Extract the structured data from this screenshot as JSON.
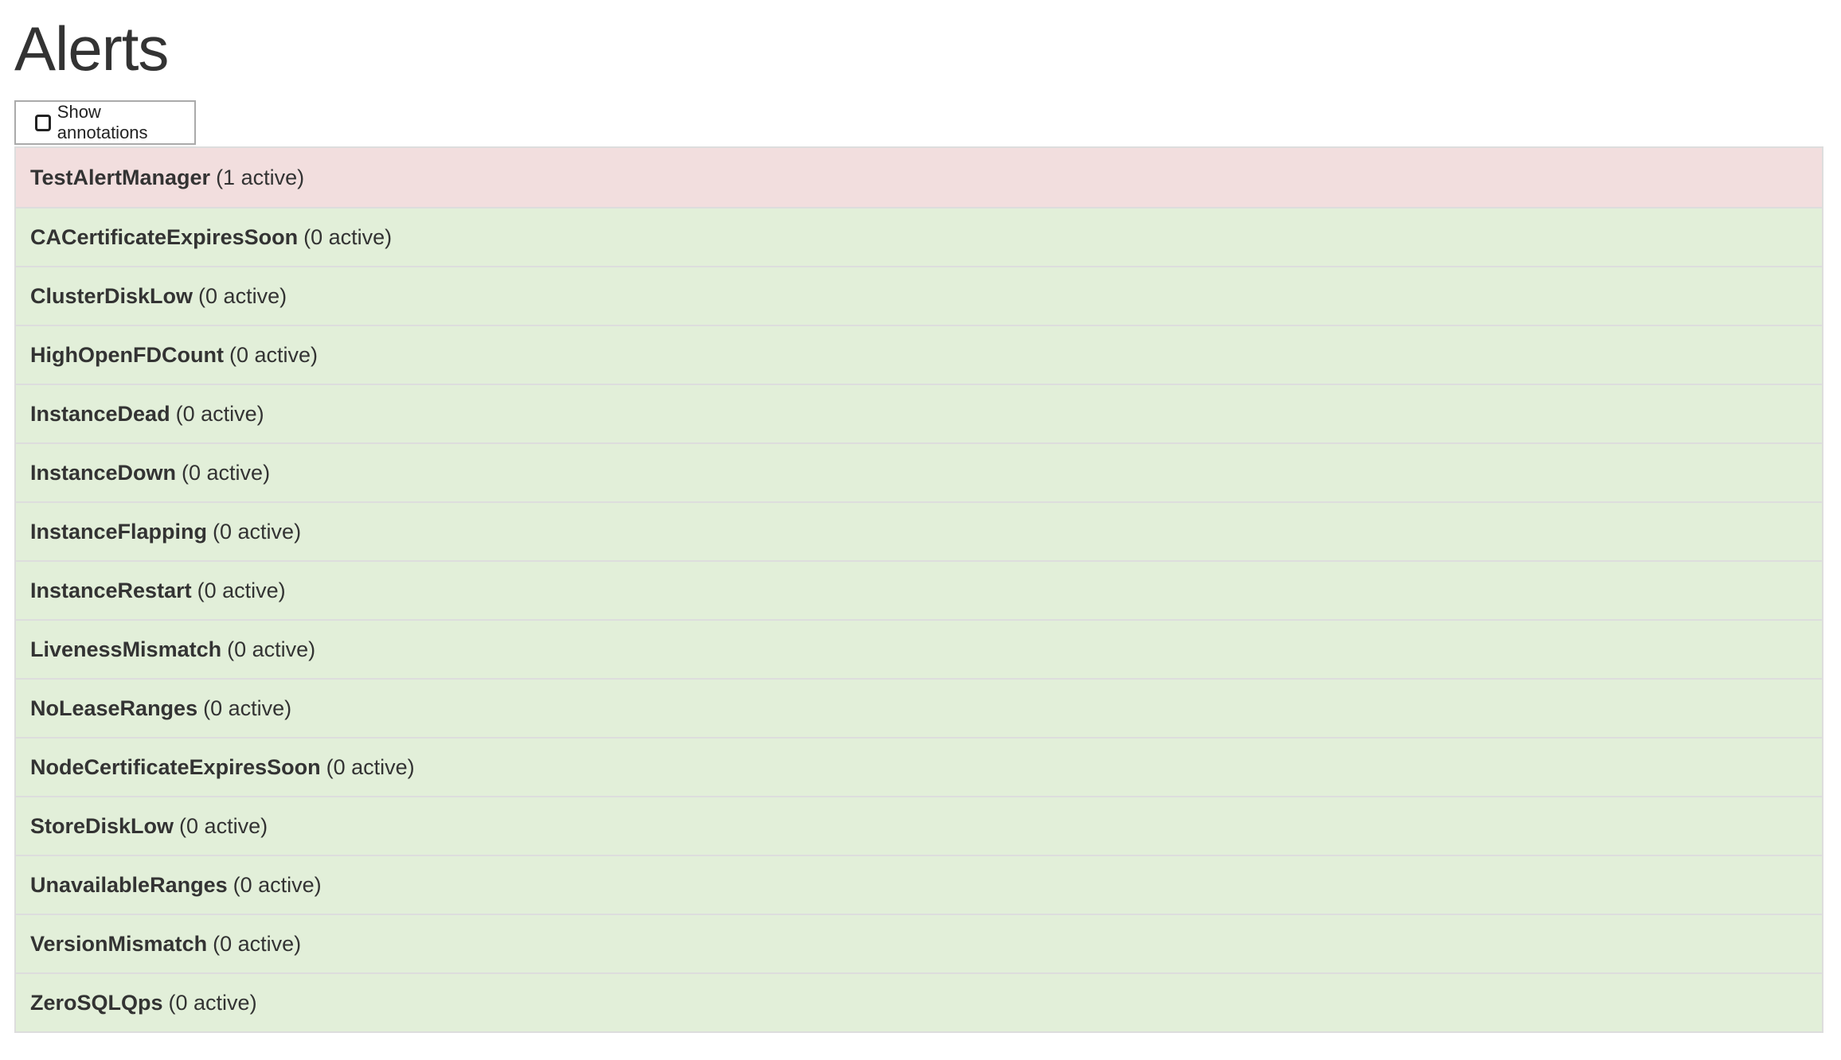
{
  "page": {
    "title": "Alerts"
  },
  "controls": {
    "show_annotations_label": "Show annotations",
    "show_annotations_checked": false
  },
  "colors": {
    "firing_bg": "#f2dede",
    "inactive_bg": "#e2efd9",
    "border": "#dddddd"
  },
  "alerts": [
    {
      "name": "TestAlertManager",
      "status": "(1 active)",
      "state": "firing"
    },
    {
      "name": "CACertificateExpiresSoon",
      "status": "(0 active)",
      "state": "inactive"
    },
    {
      "name": "ClusterDiskLow",
      "status": "(0 active)",
      "state": "inactive"
    },
    {
      "name": "HighOpenFDCount",
      "status": "(0 active)",
      "state": "inactive"
    },
    {
      "name": "InstanceDead",
      "status": "(0 active)",
      "state": "inactive"
    },
    {
      "name": "InstanceDown",
      "status": "(0 active)",
      "state": "inactive"
    },
    {
      "name": "InstanceFlapping",
      "status": "(0 active)",
      "state": "inactive"
    },
    {
      "name": "InstanceRestart",
      "status": "(0 active)",
      "state": "inactive"
    },
    {
      "name": "LivenessMismatch",
      "status": "(0 active)",
      "state": "inactive"
    },
    {
      "name": "NoLeaseRanges",
      "status": "(0 active)",
      "state": "inactive"
    },
    {
      "name": "NodeCertificateExpiresSoon",
      "status": "(0 active)",
      "state": "inactive"
    },
    {
      "name": "StoreDiskLow",
      "status": "(0 active)",
      "state": "inactive"
    },
    {
      "name": "UnavailableRanges",
      "status": "(0 active)",
      "state": "inactive"
    },
    {
      "name": "VersionMismatch",
      "status": "(0 active)",
      "state": "inactive"
    },
    {
      "name": "ZeroSQLQps",
      "status": "(0 active)",
      "state": "inactive"
    }
  ]
}
